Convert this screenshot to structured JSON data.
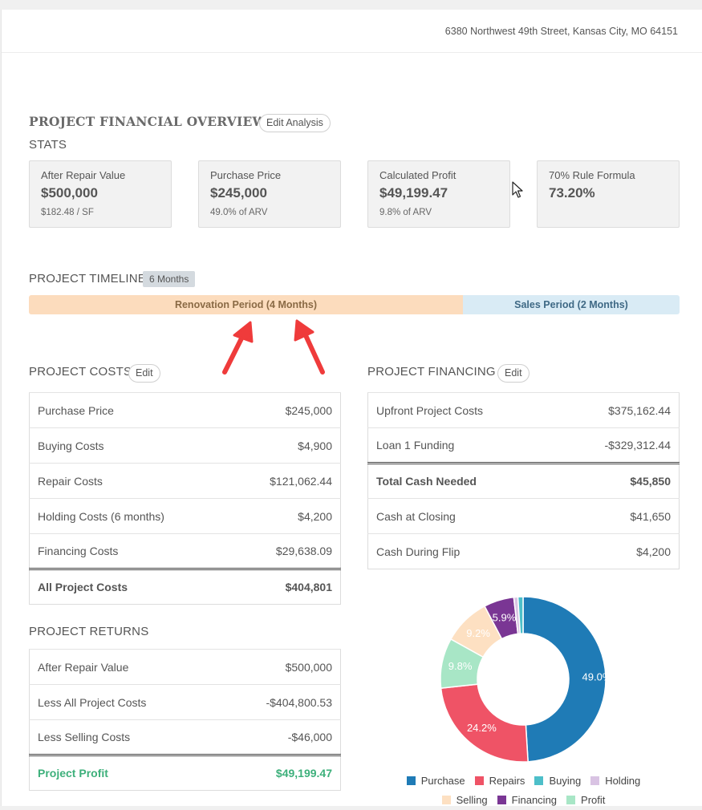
{
  "header": {
    "address": "6380 Northwest 49th Street, Kansas City, MO 64151"
  },
  "overview": {
    "title": "PROJECT FINANCIAL OVERVIEW",
    "edit_label": "Edit Analysis"
  },
  "stats": {
    "title": "STATS",
    "cards": [
      {
        "label": "After Repair Value",
        "value": "$500,000",
        "sub": "$182.48 / SF"
      },
      {
        "label": "Purchase Price",
        "value": "$245,000",
        "sub": "49.0% of ARV"
      },
      {
        "label": "Calculated Profit",
        "value": "$49,199.47",
        "sub": "9.8% of ARV"
      },
      {
        "label": "70% Rule Formula",
        "value": "73.20%",
        "sub": ""
      }
    ]
  },
  "timeline": {
    "title": "PROJECT TIMELINE",
    "badge": "6 Months",
    "renovation": "Renovation Period (4 Months)",
    "sales": "Sales Period (2 Months)"
  },
  "costs": {
    "title": "PROJECT COSTS",
    "edit_label": "Edit",
    "rows": [
      {
        "label": "Purchase Price",
        "value": "$245,000"
      },
      {
        "label": "Buying Costs",
        "value": "$4,900"
      },
      {
        "label": "Repair Costs",
        "value": "$121,062.44"
      },
      {
        "label": "Holding Costs (6 months)",
        "value": "$4,200"
      },
      {
        "label": "Financing Costs",
        "value": "$29,638.09"
      }
    ],
    "total": {
      "label": "All Project Costs",
      "value": "$404,801"
    }
  },
  "returns": {
    "title": "PROJECT RETURNS",
    "rows": [
      {
        "label": "After Repair Value",
        "value": "$500,000"
      },
      {
        "label": "Less All Project Costs",
        "value": "-$404,800.53"
      },
      {
        "label": "Less Selling Costs",
        "value": "-$46,000"
      }
    ],
    "total": {
      "label": "Project Profit",
      "value": "$49,199.47"
    }
  },
  "financing": {
    "title": "PROJECT FINANCING",
    "edit_label": "Edit",
    "rows": [
      {
        "label": "Upfront Project Costs",
        "value": "$375,162.44"
      },
      {
        "label": "Loan 1 Funding",
        "value": "-$329,312.44"
      }
    ],
    "total": {
      "label": "Total Cash Needed",
      "value": "$45,850"
    },
    "rows_after": [
      {
        "label": "Cash at Closing",
        "value": "$41,650"
      },
      {
        "label": "Cash During Flip",
        "value": "$4,200"
      }
    ]
  },
  "chart_data": {
    "type": "pie",
    "variant": "donut",
    "categories": [
      "Purchase",
      "Repairs",
      "Buying",
      "Holding",
      "Selling",
      "Financing",
      "Profit"
    ],
    "values": [
      49.0,
      24.2,
      1.0,
      0.8,
      9.2,
      5.9,
      9.8
    ],
    "data_labels": [
      "49.0%",
      "24.2%",
      "",
      "",
      "9.2%",
      "5.9%",
      "9.8%"
    ],
    "draw_order": [
      "Purchase",
      "Repairs",
      "Profit",
      "Selling",
      "Financing",
      "Holding",
      "Buying"
    ],
    "colors": [
      "#1f7bb6",
      "#ef5366",
      "#4dbfc9",
      "#d9c3e3",
      "#fde0c2",
      "#7a3694",
      "#a8e6c6"
    ],
    "legend_position": "bottom"
  }
}
